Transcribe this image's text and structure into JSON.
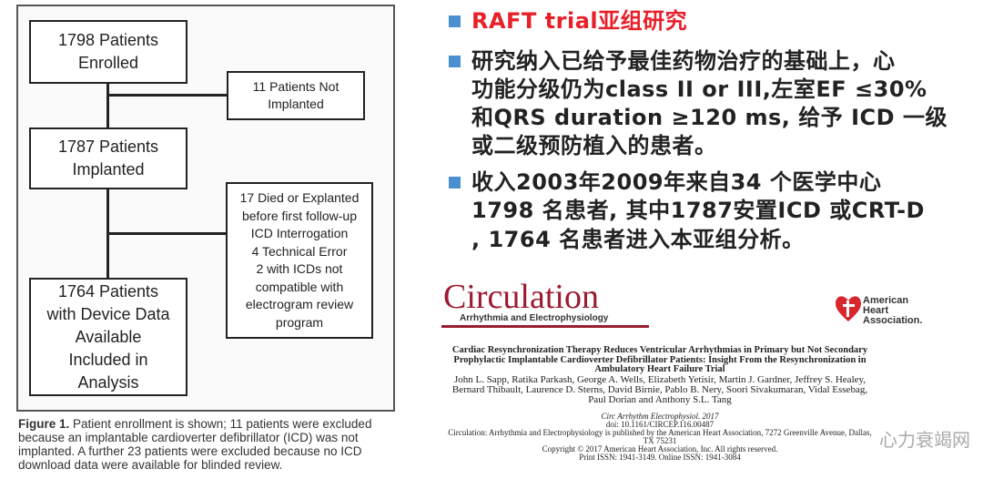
{
  "flowchart": {
    "enrolled": "1798 Patients\nEnrolled",
    "not_implanted": "11 Patients Not\nImplanted",
    "implanted": "1787 Patients\nImplanted",
    "excluded": "17 Died or Explanted\nbefore first follow-up\nICD Interrogation\n4 Technical Error\n2 with ICDs not\ncompatible with\nelectrogram review\nprogram",
    "analysis": "1764 Patients\nwith Device Data\nAvailable\nIncluded in\nAnalysis"
  },
  "caption": {
    "label": "Figure 1.",
    "text": " Patient enrollment is shown; 11 patients were excluded because an implantable cardioverter defibrillator (ICD) was not implanted. A further 23 patients were excluded because no ICD download data were available for blinded review."
  },
  "bullets": [
    {
      "lines": [
        "RAFT trial亚组研究"
      ]
    },
    {
      "lines": [
        "研究纳入已给予最佳药物治疗的基础上，心",
        "功能分级仍为class II or III,左室EF ≤30%",
        "和QRS duration ≥120 ms, 给予 ICD 一级",
        "或二级预防植入的患者。"
      ]
    },
    {
      "lines": [
        "收入2003年2009年来自34 个医学中心",
        "1798 名患者, 其中1787安置ICD 或CRT-D",
        ", 1764 名患者进入本亚组分析。"
      ]
    }
  ],
  "colors": {
    "title": "#e8202a",
    "bullet": "#4a90d0",
    "journal": "#9b1b30"
  },
  "journal": {
    "name": "Circulation",
    "subtitle": "Arrhythmia and Electrophysiology",
    "aha": "American\nHeart\nAssociation."
  },
  "paper": {
    "title": "Cardiac Resynchronization Therapy Reduces Ventricular Arrhythmias in Primary but Not Secondary Prophylactic Implantable Cardioverter Defibrillator Patients: Insight From the Resynchronization in Ambulatory Heart Failure Trial",
    "authors": "John L. Sapp, Ratika Parkash, George A. Wells, Elizabeth Yetisir, Martin J. Gardner, Jeffrey S. Healey, Bernard Thibault, Laurence D. Sterns, David Birnie, Pablo B. Nery, Soori Sivakumaran, Vidal Essebag, Paul Dorian and Anthony S.L. Tang",
    "citation": "Circ Arrhythm Electrophysiol. 2017",
    "doi": "doi: 10.1161/CIRCEP.116.00487",
    "publisher": "Circulation: Arrhythmia and Electrophysiology is published by the American Heart Association, 7272 Greenville Avenue, Dallas, TX 75231",
    "copyright": "Copyright © 2017 American Heart Association, Inc. All rights reserved.",
    "issn": "Print ISSN: 1941-3149. Online ISSN: 1941-3084"
  },
  "watermark": "心力衰竭网"
}
